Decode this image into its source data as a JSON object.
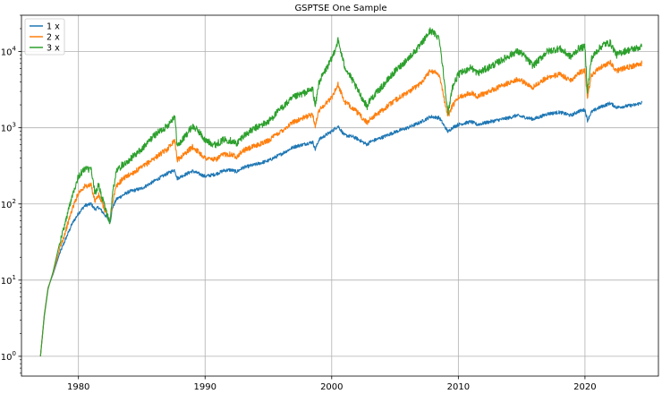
{
  "chart_data": {
    "type": "line",
    "title": "GSPTSE One Sample",
    "xlabel": "",
    "ylabel": "",
    "y_scale": "log",
    "xlim": [
      1975.5,
      2025.8
    ],
    "ylim": [
      0.55,
      30000
    ],
    "grid": true,
    "legend_position": "top-left",
    "x_ticks": [
      {
        "value": 1980,
        "label": "1980"
      },
      {
        "value": 1990,
        "label": "1990"
      },
      {
        "value": 2000,
        "label": "2000"
      },
      {
        "value": 2010,
        "label": "2010"
      },
      {
        "value": 2020,
        "label": "2020"
      }
    ],
    "y_ticks": [
      {
        "value": 1,
        "base": "10",
        "exp": "0"
      },
      {
        "value": 10,
        "base": "10",
        "exp": "1"
      },
      {
        "value": 100,
        "base": "10",
        "exp": "2"
      },
      {
        "value": 1000,
        "base": "10",
        "exp": "3"
      },
      {
        "value": 10000,
        "base": "10",
        "exp": "4"
      }
    ],
    "x": [
      1977.0,
      1977.3,
      1977.6,
      1978.0,
      1978.5,
      1979.0,
      1979.5,
      1980.0,
      1980.5,
      1981.0,
      1981.3,
      1981.6,
      1982.0,
      1982.5,
      1982.7,
      1983.0,
      1983.5,
      1984.0,
      1985.0,
      1986.0,
      1987.0,
      1987.6,
      1987.8,
      1988.0,
      1989.0,
      1989.5,
      1990.0,
      1990.8,
      1991.5,
      1992.0,
      1992.5,
      1993.0,
      1994.0,
      1995.0,
      1996.0,
      1997.0,
      1998.5,
      1998.7,
      1999.0,
      2000.0,
      2000.5,
      2001.0,
      2001.7,
      2002.0,
      2002.8,
      2003.0,
      2004.0,
      2005.0,
      2006.0,
      2007.0,
      2007.8,
      2008.5,
      2008.9,
      2009.2,
      2009.5,
      2010.0,
      2011.0,
      2011.5,
      2012.0,
      2013.0,
      2014.0,
      2014.6,
      2015.0,
      2015.9,
      2016.5,
      2017.0,
      2018.0,
      2018.9,
      2019.5,
      2020.0,
      2020.2,
      2020.5,
      2021.0,
      2021.5,
      2022.0,
      2022.5,
      2023.0,
      2023.5,
      2024.0,
      2024.5
    ],
    "series": [
      {
        "name": "1 x",
        "color": "#1f77b4",
        "values": [
          1.0,
          3.5,
          8.0,
          12.0,
          22.0,
          35.0,
          55.0,
          75.0,
          95.0,
          100.0,
          85.0,
          90.0,
          75.0,
          58.0,
          90.0,
          115.0,
          130.0,
          145.0,
          160.0,
          200.0,
          250.0,
          280.0,
          215.0,
          225.0,
          270.0,
          250.0,
          230.0,
          245.0,
          275.0,
          280.0,
          265.0,
          300.0,
          330.0,
          370.0,
          450.0,
          560.0,
          650.0,
          520.0,
          700.0,
          900.0,
          1050.0,
          800.0,
          760.0,
          720.0,
          600.0,
          650.0,
          750.0,
          880.0,
          1000.0,
          1180.0,
          1400.0,
          1350.0,
          1050.0,
          880.0,
          1000.0,
          1100.0,
          1200.0,
          1100.0,
          1150.0,
          1250.0,
          1350.0,
          1450.0,
          1400.0,
          1300.0,
          1400.0,
          1520.0,
          1600.0,
          1450.0,
          1650.0,
          1720.0,
          1250.0,
          1600.0,
          1800.0,
          1950.0,
          2100.0,
          1850.0,
          1900.0,
          1950.0,
          2000.0,
          2150.0
        ]
      },
      {
        "name": "2 x",
        "color": "#ff7f0e",
        "values": [
          1.0,
          3.4,
          7.8,
          12.5,
          25.0,
          45.0,
          85.0,
          140.0,
          170.0,
          175.0,
          110.0,
          130.0,
          90.0,
          58.0,
          110.0,
          170.0,
          215.0,
          240.0,
          300.0,
          400.0,
          520.0,
          700.0,
          380.0,
          400.0,
          560.0,
          480.0,
          400.0,
          380.0,
          450.0,
          450.0,
          420.0,
          500.0,
          580.0,
          680.0,
          900.0,
          1200.0,
          1500.0,
          1050.0,
          1700.0,
          2500.0,
          3700.0,
          2200.0,
          1800.0,
          1600.0,
          1150.0,
          1300.0,
          1700.0,
          2300.0,
          2900.0,
          3800.0,
          5700.0,
          5000.0,
          2300.0,
          1400.0,
          1900.0,
          2500.0,
          2900.0,
          2600.0,
          2800.0,
          3300.0,
          3900.0,
          4300.0,
          4100.0,
          3400.0,
          4000.0,
          4600.0,
          5000.0,
          4200.0,
          5300.0,
          5600.0,
          2500.0,
          4800.0,
          5800.0,
          6600.0,
          7200.0,
          5600.0,
          6000.0,
          6300.0,
          6600.0,
          7000.0
        ]
      },
      {
        "name": "3 x",
        "color": "#2ca02c",
        "values": [
          1.0,
          3.3,
          7.6,
          13.0,
          30.0,
          60.0,
          130.0,
          230.0,
          290.0,
          280.0,
          140.0,
          175.0,
          100.0,
          57.0,
          140.0,
          270.0,
          330.0,
          380.0,
          520.0,
          800.0,
          1050.0,
          1450.0,
          580.0,
          620.0,
          1050.0,
          900.0,
          680.0,
          600.0,
          700.0,
          680.0,
          620.0,
          780.0,
          1000.0,
          1200.0,
          1800.0,
          2500.0,
          3200.0,
          1900.0,
          4000.0,
          8000.0,
          14000.0,
          6500.0,
          4000.0,
          3200.0,
          1900.0,
          2300.0,
          3500.0,
          5500.0,
          8000.0,
          12000.0,
          19000.0,
          15000.0,
          4000.0,
          1500.0,
          3300.0,
          5000.0,
          6200.0,
          5200.0,
          5700.0,
          7000.0,
          8800.0,
          10000.0,
          9500.0,
          6500.0,
          8200.0,
          10000.0,
          11000.0,
          8500.0,
          11000.0,
          11500.0,
          3000.0,
          8000.0,
          10500.0,
          12500.0,
          13000.0,
          9000.0,
          10000.0,
          10500.0,
          11000.0,
          11500.0
        ]
      }
    ]
  }
}
